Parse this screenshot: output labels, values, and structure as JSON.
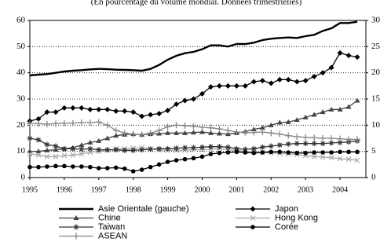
{
  "chart_data": {
    "type": "line",
    "subtitle": "(En pourcentage du volume mondial. Données trimestrielles)",
    "x": [
      1995,
      1995.25,
      1995.5,
      1995.75,
      1996,
      1996.25,
      1996.5,
      1996.75,
      1997,
      1997.25,
      1997.5,
      1997.75,
      1998,
      1998.25,
      1998.5,
      1998.75,
      1999,
      1999.25,
      1999.5,
      1999.75,
      2000,
      2000.25,
      2000.5,
      2000.75,
      2001,
      2001.25,
      2001.5,
      2001.75,
      2002,
      2002.25,
      2002.5,
      2002.75,
      2003,
      2003.25,
      2003.5,
      2003.75,
      2004,
      2004.25,
      2004.5
    ],
    "xlim": [
      1995,
      2004.75
    ],
    "xticks": [
      1995,
      1996,
      1997,
      1998,
      1999,
      2000,
      2001,
      2002,
      2003,
      2004
    ],
    "ylim": [
      0,
      60
    ],
    "yticks": [
      0,
      10,
      20,
      30,
      40,
      50,
      60
    ],
    "y2lim": [
      0,
      30
    ],
    "y2ticks": [
      0,
      5,
      10,
      15,
      20,
      25,
      30
    ],
    "grid": true,
    "series": [
      {
        "name": "Asie Orientale (gauche)",
        "color": "#000000",
        "marker": "none",
        "values": [
          39,
          39.3,
          39.5,
          40,
          40.5,
          40.8,
          41,
          41.3,
          41.5,
          41.4,
          41.2,
          41.1,
          41,
          40.8,
          41.5,
          43,
          45,
          46.5,
          47.5,
          48,
          49,
          50.5,
          50.5,
          50,
          51,
          51,
          51.5,
          52.5,
          53,
          53.3,
          53.5,
          53.3,
          54,
          54.5,
          56,
          57,
          59,
          59,
          59.5
        ]
      },
      {
        "name": "Japon",
        "color": "#000000",
        "marker": "diamond",
        "axis": "y2",
        "values": [
          10.8,
          11.2,
          12.5,
          12.5,
          13.3,
          13.3,
          13.3,
          13,
          13,
          13,
          12.7,
          12.7,
          12.5,
          11.7,
          12,
          12.2,
          12.8,
          14,
          14.7,
          15,
          16,
          17.3,
          17.5,
          17.5,
          17.5,
          17.5,
          18.3,
          18.5,
          18,
          18.7,
          18.7,
          18.3,
          18.5,
          19.3,
          20,
          21,
          23.8,
          23.3,
          23
        ]
      },
      {
        "name": "Chine",
        "color": "#444444",
        "marker": "triangle",
        "axis": "y2",
        "values": [
          5,
          5,
          5.2,
          5.3,
          5.5,
          5.7,
          6.2,
          6.7,
          7,
          7.5,
          8,
          8.2,
          8.3,
          8.2,
          8.3,
          8.4,
          8.5,
          8.5,
          8.5,
          8.6,
          8.7,
          8.5,
          8.4,
          8.3,
          8.5,
          8.8,
          9.2,
          9.5,
          10,
          10.5,
          10.6,
          11,
          11.5,
          12,
          12.5,
          13,
          13,
          13.5,
          14.7
        ]
      },
      {
        "name": "Hong Kong",
        "color": "#aaaaaa",
        "marker": "x",
        "axis": "y2",
        "values": [
          4.5,
          4.3,
          4,
          4,
          4.2,
          4.3,
          4.5,
          4.8,
          5,
          5.2,
          5.5,
          5.5,
          5.6,
          5.7,
          5.5,
          5.3,
          5.2,
          5.2,
          5.2,
          5.3,
          5.3,
          5.4,
          5.5,
          5.3,
          5.2,
          5,
          4.9,
          4.8,
          4.7,
          4.6,
          4.5,
          4.4,
          4.2,
          4,
          3.9,
          3.8,
          3.6,
          3.5,
          3.3
        ]
      },
      {
        "name": "Taiwan",
        "color": "#333333",
        "marker": "star",
        "axis": "y2",
        "values": [
          7.5,
          7.2,
          6.3,
          6,
          5.5,
          5.5,
          5.4,
          5.5,
          5.3,
          5.3,
          5.3,
          5.2,
          5.2,
          5.3,
          5.4,
          5.5,
          5.5,
          5.6,
          5.7,
          5.7,
          5.8,
          5.9,
          5.9,
          5.8,
          5.5,
          5.4,
          5.5,
          5.8,
          6,
          6.2,
          6.4,
          6.5,
          6.5,
          6.5,
          6.5,
          6.6,
          6.7,
          6.8,
          7
        ]
      },
      {
        "name": "Corée",
        "color": "#000000",
        "marker": "circle",
        "axis": "y2",
        "values": [
          2,
          2,
          2.1,
          2.2,
          2.2,
          2.1,
          2.1,
          2,
          1.8,
          1.8,
          1.9,
          1.7,
          1.2,
          1.5,
          2,
          2.5,
          3,
          3.3,
          3.5,
          3.7,
          4,
          4.5,
          4.7,
          4.8,
          4.9,
          4.8,
          4.7,
          4.8,
          4.9,
          4.9,
          4.8,
          4.7,
          4.7,
          4.8,
          4.8,
          4.8,
          4.9,
          4.9,
          4.9
        ]
      },
      {
        "name": "ASEAN",
        "color": "#888888",
        "marker": "plus",
        "axis": "y2",
        "values": [
          10.3,
          10.3,
          10.2,
          10.3,
          10.4,
          10.4,
          10.5,
          10.5,
          10.6,
          10,
          9,
          8.5,
          8.3,
          8.2,
          8.5,
          9,
          9.7,
          10,
          9.9,
          9.8,
          9.6,
          9.5,
          9.3,
          9,
          8.7,
          8.6,
          8.6,
          8.7,
          8.5,
          8.3,
          8,
          7.8,
          7.7,
          7.6,
          7.5,
          7.5,
          7.4,
          7.3,
          7.3
        ]
      }
    ]
  }
}
